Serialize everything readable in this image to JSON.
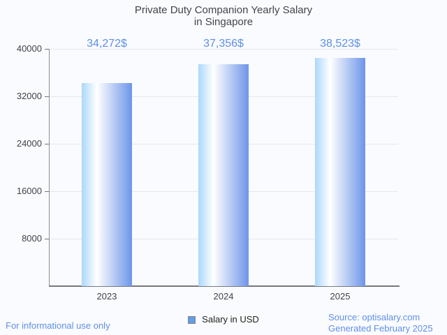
{
  "title": {
    "line1": "Private Duty Companion Yearly Salary",
    "line2": "in Singapore"
  },
  "chart_data": {
    "type": "bar",
    "title": "Private Duty Companion Yearly Salary in Singapore",
    "categories": [
      "2023",
      "2024",
      "2025"
    ],
    "values": [
      34272,
      37356,
      38523
    ],
    "value_labels": [
      "34,272$",
      "37,356$",
      "38,523$"
    ],
    "series_name": "Salary in USD",
    "xlabel": "",
    "ylabel": "",
    "ylim": [
      0,
      40000
    ],
    "yticks": [
      8000,
      16000,
      24000,
      32000,
      40000
    ],
    "grid": true,
    "legend_position": "bottom"
  },
  "legend": {
    "label": "Salary in USD"
  },
  "footer": {
    "left": "For informational use only",
    "source": "Source: optisalary.com",
    "generated": "Generated February 2025"
  },
  "colors": {
    "background": "#FAFBFE",
    "bar_gradient_left": "#ABD7FC",
    "bar_gradient_mid": "#FFFFFF",
    "bar_gradient_right": "#6D95E9",
    "value_label_blue": "#5E8FE8",
    "footer_blue": "#5E8FE8",
    "legend_swatch": "#639CE8",
    "axis_gray": "#75797D",
    "gridline_gray": "#E4E7EA",
    "text_dark": "#3F4347"
  }
}
